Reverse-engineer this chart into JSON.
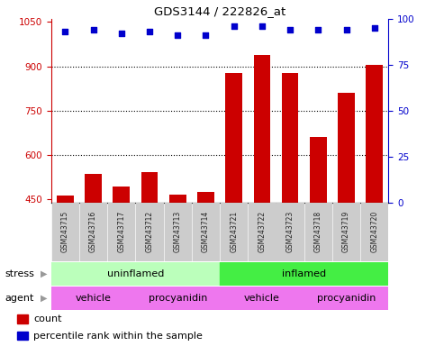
{
  "title": "GDS3144 / 222826_at",
  "samples": [
    "GSM243715",
    "GSM243716",
    "GSM243717",
    "GSM243712",
    "GSM243713",
    "GSM243714",
    "GSM243721",
    "GSM243722",
    "GSM243723",
    "GSM243718",
    "GSM243719",
    "GSM243720"
  ],
  "counts": [
    462,
    536,
    494,
    543,
    466,
    474,
    878,
    940,
    878,
    660,
    810,
    905
  ],
  "percentile_ranks": [
    93,
    94,
    92,
    93,
    91,
    91,
    96,
    96,
    94,
    94,
    94,
    95
  ],
  "ylim_left": [
    440,
    1060
  ],
  "ylim_right": [
    0,
    100
  ],
  "yticks_left": [
    450,
    600,
    750,
    900,
    1050
  ],
  "yticks_right": [
    0,
    25,
    50,
    75,
    100
  ],
  "bar_color": "#cc0000",
  "dot_color": "#0000cc",
  "left_yaxis_color": "#cc0000",
  "right_yaxis_color": "#0000cc",
  "gridline_color": "#000000",
  "stress_uninflamed_color": "#bbffbb",
  "stress_inflamed_color": "#44ee44",
  "agent_color": "#ee77ee",
  "tick_box_color": "#cccccc",
  "tick_bg_color": "#dddddd",
  "arrow_color": "#999999"
}
